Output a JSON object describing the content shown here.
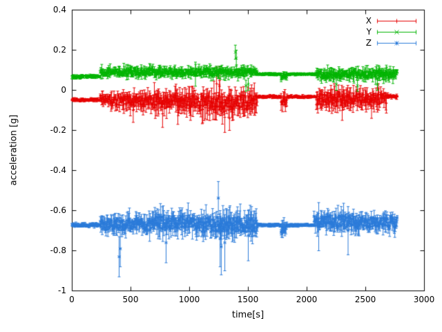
{
  "chart_data": {
    "type": "scatter",
    "style": "yerrorbars",
    "title": "",
    "xlabel": "time[s]",
    "ylabel": "acceleration [g]",
    "xlim": [
      0,
      3000
    ],
    "ylim": [
      -1,
      0.4
    ],
    "x_tick_labels": [
      "0",
      "500",
      "1000",
      "1500",
      "2000",
      "2500",
      "3000"
    ],
    "y_tick_labels": [
      "-1",
      "-0.8",
      "-0.6",
      "-0.4",
      "-0.2",
      "0",
      "0.2",
      "0.4"
    ],
    "grid": false,
    "legend_position": "top-right-inside",
    "t_end": 2770,
    "sample_step_s": 4,
    "series": [
      {
        "name": "X",
        "color": "#e60000",
        "marker": "plus",
        "segments": [
          [
            0,
            240,
            -0.048,
            0.01
          ],
          [
            240,
            330,
            -0.042,
            0.04
          ],
          [
            330,
            700,
            -0.05,
            0.055
          ],
          [
            700,
            1050,
            -0.055,
            0.07
          ],
          [
            1050,
            1580,
            -0.06,
            0.08
          ],
          [
            1580,
            1780,
            -0.032,
            0.009
          ],
          [
            1780,
            1830,
            -0.05,
            0.045
          ],
          [
            1830,
            2080,
            -0.032,
            0.009
          ],
          [
            2080,
            2380,
            -0.045,
            0.06
          ],
          [
            2380,
            2680,
            -0.04,
            0.055
          ],
          [
            2680,
            2771,
            -0.03,
            0.014
          ]
        ],
        "outliers": [
          [
            520,
            -0.16,
            -0.04
          ],
          [
            770,
            -0.185,
            -0.05
          ],
          [
            900,
            -0.17,
            -0.05
          ],
          [
            1230,
            -0.05,
            0.115
          ],
          [
            1255,
            -0.08,
            0.12
          ],
          [
            1300,
            -0.21,
            -0.06
          ],
          [
            1340,
            -0.2,
            -0.08
          ],
          [
            2300,
            -0.15,
            -0.02
          ],
          [
            2550,
            -0.14,
            -0.02
          ]
        ]
      },
      {
        "name": "Y",
        "color": "#00b400",
        "marker": "cross",
        "segments": [
          [
            0,
            240,
            0.068,
            0.01
          ],
          [
            240,
            1580,
            0.09,
            0.032
          ],
          [
            1580,
            1780,
            0.08,
            0.007
          ],
          [
            1780,
            1830,
            0.07,
            0.03
          ],
          [
            1830,
            2080,
            0.08,
            0.007
          ],
          [
            2080,
            2771,
            0.08,
            0.036
          ]
        ],
        "outliers": [
          [
            1050,
            0.02,
            0.14
          ],
          [
            1390,
            0.155,
            0.225
          ],
          [
            1398,
            0.12,
            0.2
          ],
          [
            1480,
            -0.005,
            0.05
          ],
          [
            1500,
            0,
            0.06
          ],
          [
            2250,
            0,
            0.06
          ],
          [
            2430,
            -0.005,
            0.05
          ],
          [
            2600,
            0,
            0.06
          ]
        ]
      },
      {
        "name": "Z",
        "color": "#2b7bd9",
        "marker": "star",
        "segments": [
          [
            0,
            240,
            -0.672,
            0.012
          ],
          [
            240,
            700,
            -0.67,
            0.06
          ],
          [
            700,
            1100,
            -0.66,
            0.07
          ],
          [
            1100,
            1580,
            -0.67,
            0.08
          ],
          [
            1580,
            1780,
            -0.672,
            0.008
          ],
          [
            1780,
            1830,
            -0.69,
            0.05
          ],
          [
            1830,
            2060,
            -0.672,
            0.008
          ],
          [
            2060,
            2400,
            -0.655,
            0.065
          ],
          [
            2400,
            2771,
            -0.66,
            0.055
          ]
        ],
        "outliers": [
          [
            400,
            -0.93,
            -0.73
          ],
          [
            410,
            -0.88,
            -0.7
          ],
          [
            800,
            -0.86,
            -0.66
          ],
          [
            1245,
            -0.62,
            -0.455
          ],
          [
            1260,
            -0.88,
            -0.6
          ],
          [
            1270,
            -0.92,
            -0.64
          ],
          [
            1300,
            -0.9,
            -0.62
          ],
          [
            1500,
            -0.85,
            -0.6
          ],
          [
            2100,
            -0.8,
            -0.56
          ],
          [
            2350,
            -0.82,
            -0.58
          ]
        ]
      }
    ]
  }
}
